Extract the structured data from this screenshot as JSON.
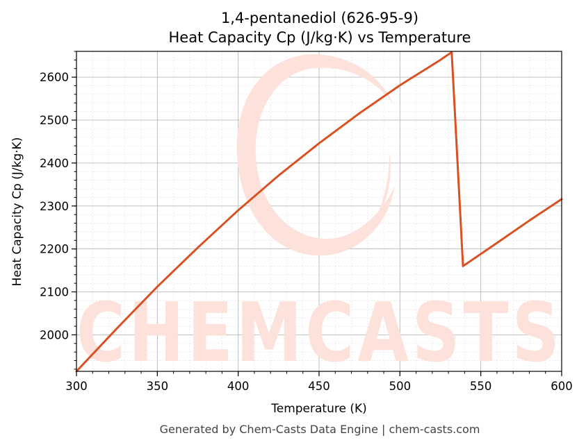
{
  "chart_data": {
    "type": "line",
    "title": "1,4-pentanediol (626-95-9)",
    "subtitle": "Heat Capacity Cp (J/kg·K) vs Temperature",
    "xlabel": "Temperature (K)",
    "ylabel": "Heat Capacity Cp (J/kg·K)",
    "xlim": [
      300,
      600
    ],
    "ylim": [
      1915,
      2660
    ],
    "xticks": [
      300,
      350,
      400,
      450,
      500,
      550,
      600
    ],
    "yticks": [
      2000,
      2100,
      2200,
      2300,
      2400,
      2500,
      2600
    ],
    "grid": true,
    "series": [
      {
        "color": "#d95123",
        "x": [
          300,
          325,
          350,
          375,
          400,
          425,
          450,
          475,
          500,
          525,
          532,
          539,
          560,
          580,
          600
        ],
        "y": [
          1915,
          2015,
          2112,
          2203,
          2290,
          2371,
          2446,
          2516,
          2581,
          2640,
          2658,
          2160,
          2214,
          2266,
          2316
        ]
      }
    ]
  },
  "watermark": "CHEMCASTS",
  "footer": "Generated by Chem-Casts Data Engine | chem-casts.com"
}
